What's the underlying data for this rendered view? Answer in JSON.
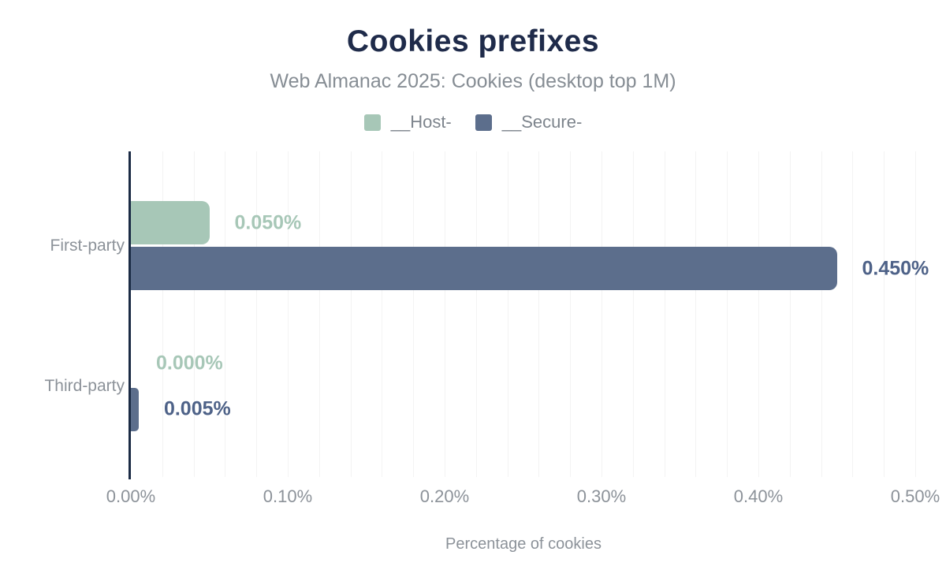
{
  "chart_data": {
    "type": "bar",
    "orientation": "horizontal",
    "title": "Cookies prefixes",
    "subtitle": "Web Almanac 2025: Cookies (desktop top 1M)",
    "xlabel": "Percentage of cookies",
    "categories": [
      "First-party",
      "Third-party"
    ],
    "series": [
      {
        "name": "__Host-",
        "color": "#a7c7b7",
        "label_color": "#a7c7b7",
        "values": [
          0.05,
          0.0
        ],
        "value_labels": [
          "0.050%",
          "0.000%"
        ]
      },
      {
        "name": "__Secure-",
        "color": "#5c6e8c",
        "label_color": "#4e6288",
        "values": [
          0.45,
          0.005
        ],
        "value_labels": [
          "0.450%",
          "0.005%"
        ]
      }
    ],
    "x_ticks": [
      {
        "value": 0.0,
        "label": "0.00%"
      },
      {
        "value": 0.1,
        "label": "0.10%"
      },
      {
        "value": 0.2,
        "label": "0.20%"
      },
      {
        "value": 0.3,
        "label": "0.30%"
      },
      {
        "value": 0.4,
        "label": "0.40%"
      },
      {
        "value": 0.5,
        "label": "0.50%"
      }
    ],
    "xlim": [
      0,
      0.52
    ],
    "grid": {
      "minor_step": 0.02,
      "color": "#f3f3f3",
      "vertical": true
    },
    "legend_position": "top",
    "colors": {
      "background": "#ffffff",
      "title_text": "#1f2b4a",
      "subtitle_text": "#868d94",
      "axis_text": "#8c9299",
      "legend_text": "#7d848c",
      "axis_line": "#1b2b45"
    }
  }
}
